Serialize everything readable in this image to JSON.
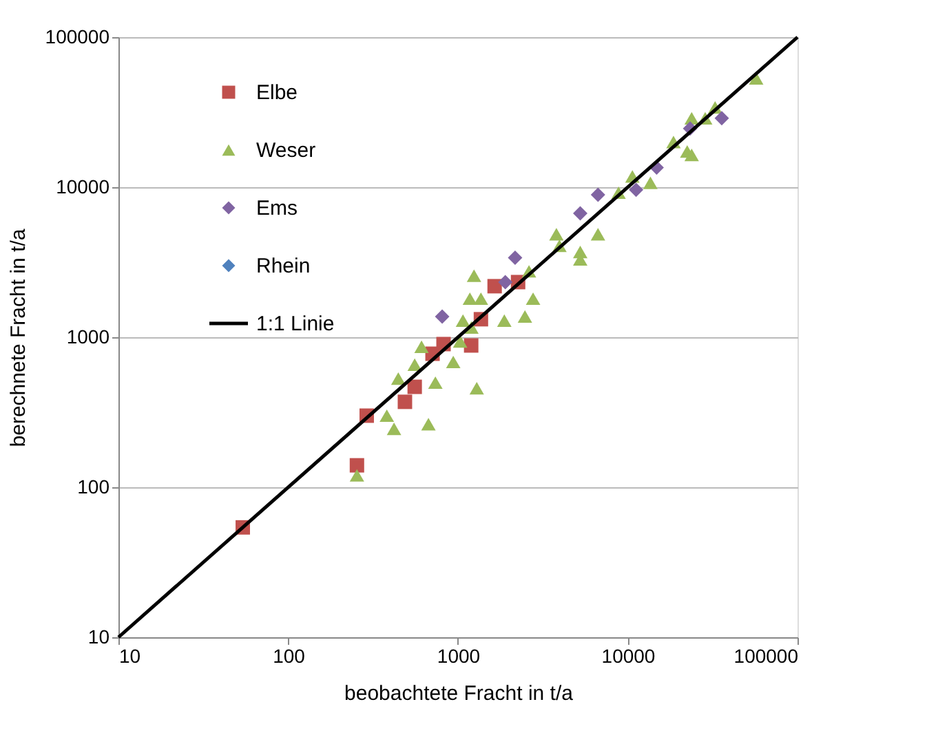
{
  "chart_data": {
    "type": "scatter",
    "xlabel": "beobachtete Fracht in t/a",
    "ylabel": "berechnete Fracht in t/a",
    "log": "xy",
    "xlim": [
      10,
      100000
    ],
    "ylim": [
      10,
      100000
    ],
    "xticks": [
      10,
      100,
      1000,
      10000,
      100000
    ],
    "yticks": [
      10,
      100,
      1000,
      10000,
      100000
    ],
    "grid": "y",
    "legend": "top left",
    "series": [
      {
        "name": "Elbe",
        "marker": "square",
        "color": "#c0504d",
        "x": [
          54,
          290,
          254,
          487,
          556,
          708,
          822,
          1196,
          1365,
          1644,
          2260
        ],
        "values": [
          54,
          300,
          140,
          371,
          467,
          776,
          900,
          881,
          1318,
          2188,
          2330
        ]
      },
      {
        "name": "Weser",
        "marker": "triangle",
        "color": "#9bbb59",
        "x": [
          254,
          420,
          381,
          445,
          556,
          610,
          670,
          736,
          938,
          1030,
          1070,
          1175,
          1243,
          1290,
          1365,
          1200,
          1875,
          2480,
          2620,
          2770,
          3800,
          3960,
          5250,
          5250,
          6680,
          8830,
          10650,
          13600,
          18600,
          22400,
          23800,
          23800,
          28600,
          32700,
          57100
        ],
        "values": [
          120,
          245,
          300,
          530,
          656,
          863,
          263,
          498,
          684,
          938,
          1290,
          1807,
          2570,
          457,
          1807,
          1160,
          1290,
          1374,
          2750,
          1807,
          4860,
          4070,
          3700,
          3300,
          4860,
          9190,
          11800,
          10700,
          20000,
          17300,
          16400,
          28800,
          28800,
          34000,
          53100
        ]
      },
      {
        "name": "Ems",
        "marker": "diamond",
        "color": "#8064a2",
        "x": [
          807,
          1900,
          2170,
          5250,
          6680,
          11200,
          14800,
          23300,
          35800
        ],
        "values": [
          1374,
          2330,
          3390,
          6700,
          8900,
          9600,
          13500,
          24600,
          28800
        ]
      },
      {
        "name": "Rhein",
        "marker": "diamond",
        "color": "#4f81bd"
      },
      {
        "name": "1:1 Linie",
        "type": "line",
        "marker": "none",
        "line_style": "solid",
        "color": "#000000",
        "x": [
          10,
          100000
        ],
        "values": [
          10,
          100000
        ]
      }
    ]
  }
}
